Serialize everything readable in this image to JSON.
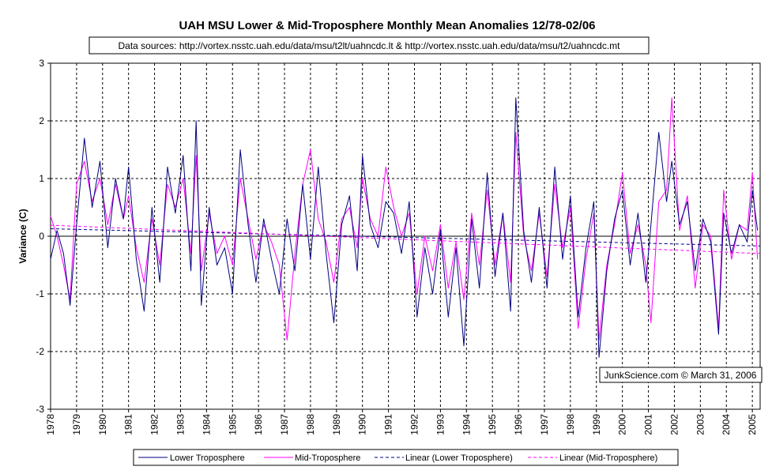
{
  "chart_data": {
    "type": "line",
    "title": "UAH MSU Lower & Mid-Troposphere Monthly Mean Anomalies 12/78-02/06",
    "subtitle": "Data sources: http://vortex.nsstc.uah.edu/data/msu/t2lt/uahncdc.lt & http://vortex.nsstc.uah.edu/data/msu/t2/uahncdc.mt",
    "xlabel": "",
    "ylabel": "Variance (C)",
    "xlim": [
      1978,
      2005.3
    ],
    "ylim": [
      -3,
      3
    ],
    "yticks": [
      3,
      2,
      1,
      0,
      -1,
      -2,
      -3
    ],
    "xtick_labels": [
      "1978",
      "1979",
      "1980",
      "1981",
      "1982",
      "1983",
      "1984",
      "1985",
      "1986",
      "1987",
      "1988",
      "1989",
      "1990",
      "1991",
      "1992",
      "1993",
      "1994",
      "1995",
      "1996",
      "1997",
      "1998",
      "1999",
      "2000",
      "2001",
      "2002",
      "2003",
      "2004",
      "2005"
    ],
    "grid": true,
    "legend_position": "bottom",
    "credit": "JunkScience.com © March 31, 2006",
    "series": [
      {
        "name": "Lower Troposphere",
        "color": "#000080",
        "style": "solid",
        "points": [
          [
            1978.0,
            -0.4
          ],
          [
            1978.25,
            0.1
          ],
          [
            1978.5,
            -0.3
          ],
          [
            1978.75,
            -1.2
          ],
          [
            1979.0,
            0.2
          ],
          [
            1979.3,
            1.7
          ],
          [
            1979.6,
            0.5
          ],
          [
            1979.9,
            1.3
          ],
          [
            1980.2,
            -0.2
          ],
          [
            1980.5,
            1.0
          ],
          [
            1980.8,
            0.3
          ],
          [
            1981.0,
            1.2
          ],
          [
            1981.3,
            -0.4
          ],
          [
            1981.6,
            -1.3
          ],
          [
            1981.9,
            0.5
          ],
          [
            1982.2,
            -0.8
          ],
          [
            1982.5,
            1.2
          ],
          [
            1982.8,
            0.4
          ],
          [
            1983.1,
            1.4
          ],
          [
            1983.4,
            -0.6
          ],
          [
            1983.6,
            2.0
          ],
          [
            1983.8,
            -1.2
          ],
          [
            1984.1,
            0.5
          ],
          [
            1984.4,
            -0.5
          ],
          [
            1984.7,
            -0.2
          ],
          [
            1985.0,
            -1.0
          ],
          [
            1985.3,
            1.5
          ],
          [
            1985.6,
            0.2
          ],
          [
            1985.9,
            -0.8
          ],
          [
            1986.2,
            0.3
          ],
          [
            1986.5,
            -0.4
          ],
          [
            1986.8,
            -1.0
          ],
          [
            1987.1,
            0.3
          ],
          [
            1987.4,
            -0.6
          ],
          [
            1987.7,
            0.9
          ],
          [
            1988.0,
            -0.4
          ],
          [
            1988.3,
            1.2
          ],
          [
            1988.6,
            -0.3
          ],
          [
            1988.9,
            -1.5
          ],
          [
            1989.2,
            0.2
          ],
          [
            1989.5,
            0.7
          ],
          [
            1989.8,
            -0.6
          ],
          [
            1990.0,
            1.4
          ],
          [
            1990.3,
            0.2
          ],
          [
            1990.6,
            -0.2
          ],
          [
            1990.9,
            0.6
          ],
          [
            1991.2,
            0.4
          ],
          [
            1991.5,
            -0.3
          ],
          [
            1991.8,
            0.6
          ],
          [
            1992.1,
            -1.4
          ],
          [
            1992.4,
            -0.2
          ],
          [
            1992.7,
            -1.0
          ],
          [
            1993.0,
            0.1
          ],
          [
            1993.3,
            -1.4
          ],
          [
            1993.6,
            -0.2
          ],
          [
            1993.9,
            -1.9
          ],
          [
            1994.2,
            0.3
          ],
          [
            1994.5,
            -0.9
          ],
          [
            1994.8,
            1.1
          ],
          [
            1995.1,
            -0.7
          ],
          [
            1995.4,
            0.4
          ],
          [
            1995.7,
            -1.3
          ],
          [
            1995.9,
            2.4
          ],
          [
            1996.2,
            0.1
          ],
          [
            1996.5,
            -0.8
          ],
          [
            1996.8,
            0.5
          ],
          [
            1997.1,
            -0.9
          ],
          [
            1997.4,
            1.2
          ],
          [
            1997.7,
            -0.4
          ],
          [
            1998.0,
            0.7
          ],
          [
            1998.3,
            -1.4
          ],
          [
            1998.6,
            -0.2
          ],
          [
            1998.9,
            0.6
          ],
          [
            1999.1,
            -2.1
          ],
          [
            1999.4,
            -0.6
          ],
          [
            1999.7,
            0.3
          ],
          [
            2000.0,
            0.8
          ],
          [
            2000.3,
            -0.5
          ],
          [
            2000.6,
            0.4
          ],
          [
            2000.9,
            -0.8
          ],
          [
            2001.1,
            0.2
          ],
          [
            2001.4,
            1.8
          ],
          [
            2001.7,
            0.6
          ],
          [
            2001.9,
            1.3
          ],
          [
            2002.2,
            0.2
          ],
          [
            2002.5,
            0.6
          ],
          [
            2002.8,
            -0.6
          ],
          [
            2003.1,
            0.3
          ],
          [
            2003.4,
            -0.1
          ],
          [
            2003.7,
            -1.7
          ],
          [
            2003.9,
            0.4
          ],
          [
            2004.2,
            -0.3
          ],
          [
            2004.5,
            0.2
          ],
          [
            2004.8,
            -0.1
          ],
          [
            2005.0,
            0.8
          ],
          [
            2005.2,
            0.1
          ]
        ]
      },
      {
        "name": "Mid-Troposphere",
        "color": "#FF00FF",
        "style": "solid",
        "points": [
          [
            1978.0,
            0.35
          ],
          [
            1978.25,
            0.0
          ],
          [
            1978.5,
            -0.5
          ],
          [
            1978.75,
            -1.1
          ],
          [
            1979.0,
            0.9
          ],
          [
            1979.3,
            1.3
          ],
          [
            1979.6,
            0.6
          ],
          [
            1979.9,
            1.0
          ],
          [
            1980.2,
            0.2
          ],
          [
            1980.5,
            0.9
          ],
          [
            1980.8,
            0.3
          ],
          [
            1981.0,
            0.7
          ],
          [
            1981.3,
            -0.2
          ],
          [
            1981.6,
            -0.8
          ],
          [
            1981.9,
            0.3
          ],
          [
            1982.2,
            -0.5
          ],
          [
            1982.5,
            0.9
          ],
          [
            1982.8,
            0.5
          ],
          [
            1983.1,
            1.0
          ],
          [
            1983.4,
            -0.3
          ],
          [
            1983.6,
            1.4
          ],
          [
            1983.8,
            -0.6
          ],
          [
            1984.1,
            0.4
          ],
          [
            1984.4,
            -0.3
          ],
          [
            1984.7,
            0.0
          ],
          [
            1985.0,
            -0.5
          ],
          [
            1985.3,
            1.0
          ],
          [
            1985.6,
            0.3
          ],
          [
            1985.9,
            -0.4
          ],
          [
            1986.2,
            0.2
          ],
          [
            1986.5,
            -0.1
          ],
          [
            1986.8,
            -0.5
          ],
          [
            1987.1,
            -1.8
          ],
          [
            1987.4,
            -0.3
          ],
          [
            1987.7,
            0.9
          ],
          [
            1988.0,
            1.5
          ],
          [
            1988.3,
            0.3
          ],
          [
            1988.6,
            -0.1
          ],
          [
            1988.9,
            -0.8
          ],
          [
            1989.2,
            0.3
          ],
          [
            1989.5,
            0.5
          ],
          [
            1989.8,
            -0.2
          ],
          [
            1990.0,
            1.0
          ],
          [
            1990.3,
            0.3
          ],
          [
            1990.6,
            0.0
          ],
          [
            1990.9,
            1.2
          ],
          [
            1991.2,
            0.5
          ],
          [
            1991.5,
            0.0
          ],
          [
            1991.8,
            0.4
          ],
          [
            1992.1,
            -1.0
          ],
          [
            1992.4,
            0.0
          ],
          [
            1992.7,
            -0.6
          ],
          [
            1993.0,
            0.2
          ],
          [
            1993.3,
            -0.9
          ],
          [
            1993.6,
            -0.1
          ],
          [
            1993.9,
            -1.1
          ],
          [
            1994.2,
            0.4
          ],
          [
            1994.5,
            -0.5
          ],
          [
            1994.8,
            0.8
          ],
          [
            1995.1,
            -0.5
          ],
          [
            1995.4,
            0.4
          ],
          [
            1995.7,
            -0.8
          ],
          [
            1995.9,
            1.8
          ],
          [
            1996.2,
            0.0
          ],
          [
            1996.5,
            -0.6
          ],
          [
            1996.8,
            0.4
          ],
          [
            1997.1,
            -0.7
          ],
          [
            1997.4,
            0.9
          ],
          [
            1997.7,
            -0.2
          ],
          [
            1998.0,
            0.5
          ],
          [
            1998.3,
            -1.6
          ],
          [
            1998.6,
            -0.4
          ],
          [
            1998.9,
            0.4
          ],
          [
            1999.1,
            -1.8
          ],
          [
            1999.4,
            -0.5
          ],
          [
            1999.7,
            0.2
          ],
          [
            2000.0,
            1.1
          ],
          [
            2000.3,
            -0.3
          ],
          [
            2000.6,
            0.2
          ],
          [
            2000.9,
            -0.5
          ],
          [
            2001.1,
            -1.5
          ],
          [
            2001.4,
            0.6
          ],
          [
            2001.7,
            0.8
          ],
          [
            2001.9,
            2.4
          ],
          [
            2002.2,
            0.1
          ],
          [
            2002.5,
            0.7
          ],
          [
            2002.8,
            -0.9
          ],
          [
            2003.1,
            0.2
          ],
          [
            2003.4,
            0.0
          ],
          [
            2003.7,
            -1.6
          ],
          [
            2003.9,
            0.8
          ],
          [
            2004.2,
            -0.4
          ],
          [
            2004.5,
            0.2
          ],
          [
            2004.8,
            0.1
          ],
          [
            2005.0,
            1.1
          ],
          [
            2005.2,
            -0.4
          ]
        ]
      },
      {
        "name": "Linear (Lower Troposphere)",
        "color": "#000080",
        "style": "dashed",
        "points": [
          [
            1978.0,
            0.13
          ],
          [
            2005.3,
            -0.17
          ]
        ]
      },
      {
        "name": "Linear (Mid-Troposphere)",
        "color": "#FF00FF",
        "style": "dashed",
        "points": [
          [
            1978.0,
            0.19
          ],
          [
            2005.3,
            -0.3
          ]
        ]
      }
    ]
  }
}
